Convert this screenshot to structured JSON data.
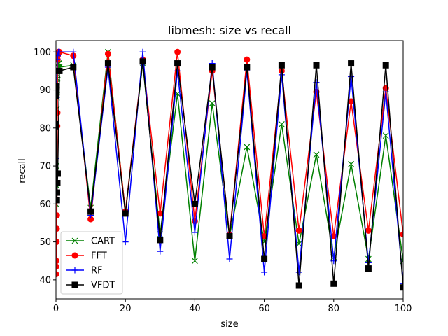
{
  "chart_data": {
    "type": "line",
    "title": "libmesh: size vs recall",
    "xlabel": "size",
    "ylabel": "recall",
    "xlim": [
      0,
      100
    ],
    "ylim": [
      35,
      103
    ],
    "xticks": [
      0,
      20,
      40,
      60,
      80,
      100
    ],
    "yticks": [
      40,
      50,
      60,
      70,
      80,
      90,
      100
    ],
    "x_tick_labels": [
      "0",
      "20",
      "40",
      "60",
      "80",
      "100"
    ],
    "y_tick_labels": [
      "40",
      "50",
      "60",
      "70",
      "80",
      "90",
      "100"
    ],
    "legend_position": "lower-left",
    "series": [
      {
        "name": "CART",
        "color": "#008000",
        "marker": "x",
        "x": [
          0,
          0.05,
          0.1,
          0.15,
          0.2,
          0.25,
          0.3,
          0.35,
          0.4,
          0.45,
          0.5,
          0.6,
          0.7,
          0.8,
          0.9,
          1,
          5,
          10,
          15,
          20,
          25,
          30,
          35,
          40,
          45,
          50,
          55,
          60,
          65,
          70,
          75,
          80,
          85,
          90,
          95,
          100
        ],
        "y": [
          60,
          65,
          70,
          80,
          85,
          88,
          90,
          92,
          93,
          94,
          95,
          96,
          96,
          97,
          97,
          96,
          96.5,
          59,
          100,
          58,
          97,
          52,
          89,
          45,
          86.5,
          51.5,
          75,
          50,
          81,
          49.5,
          73,
          46,
          70.5,
          45.5,
          78,
          45
        ]
      },
      {
        "name": "FFT",
        "color": "#ff0000",
        "marker": "circle",
        "x": [
          0,
          0.05,
          0.1,
          0.15,
          0.2,
          0.25,
          0.3,
          0.35,
          0.4,
          0.45,
          0.5,
          0.6,
          0.7,
          0.8,
          0.9,
          1,
          5,
          10,
          15,
          20,
          25,
          30,
          35,
          40,
          45,
          50,
          55,
          60,
          65,
          70,
          75,
          80,
          85,
          90,
          95,
          100
        ],
        "y": [
          41.5,
          43.5,
          45,
          50,
          53.5,
          57,
          63,
          80.5,
          84,
          98,
          99,
          99.5,
          100,
          100,
          100,
          100,
          99,
          56,
          99.5,
          58,
          98,
          57.5,
          100,
          55.5,
          95,
          52,
          98,
          51.5,
          95,
          53,
          89.5,
          51.5,
          87,
          53,
          90.5,
          52
        ]
      },
      {
        "name": "RF",
        "color": "#0000ff",
        "marker": "plus",
        "x": [
          0,
          0.1,
          0.2,
          0.3,
          0.4,
          0.5,
          0.7,
          1,
          5,
          10,
          15,
          20,
          25,
          30,
          35,
          40,
          45,
          50,
          55,
          60,
          65,
          70,
          75,
          80,
          85,
          90,
          95,
          100
        ],
        "y": [
          72,
          80,
          88,
          95,
          98,
          99,
          100,
          100,
          100,
          57,
          96,
          50,
          100,
          47.5,
          95,
          52.5,
          97,
          45.5,
          95,
          42,
          94,
          42,
          92,
          45,
          93.5,
          44.5,
          89.5,
          39
        ]
      },
      {
        "name": "VFDT",
        "color": "#000000",
        "marker": "square",
        "x": [
          0,
          0.05,
          0.1,
          0.15,
          0.2,
          0.25,
          0.3,
          0.4,
          0.5,
          1,
          5,
          10,
          15,
          20,
          25,
          30,
          35,
          40,
          45,
          50,
          55,
          60,
          65,
          70,
          75,
          80,
          85,
          90,
          95,
          100
        ],
        "y": [
          80.5,
          81,
          88.5,
          89.5,
          91,
          61,
          63,
          65.5,
          68,
          95,
          96,
          58,
          97,
          57.5,
          97.5,
          50.5,
          97,
          60,
          96,
          51.5,
          96,
          45.5,
          96.5,
          38.5,
          96.5,
          39,
          97,
          43,
          96.5,
          38
        ]
      }
    ]
  }
}
